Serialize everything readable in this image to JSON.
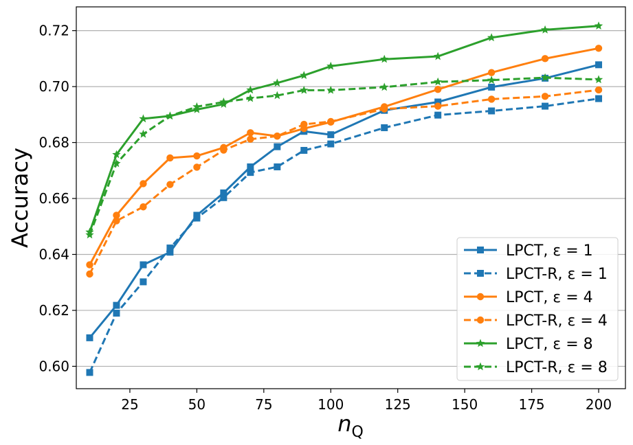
{
  "chart_data": {
    "type": "line",
    "title": "",
    "xlabel": "n",
    "xlabel_sub": "Q",
    "ylabel": "Accuracy",
    "xlim": [
      5,
      210
    ],
    "ylim": [
      0.592,
      0.7285
    ],
    "xticks": [
      25,
      50,
      75,
      100,
      125,
      150,
      175,
      200
    ],
    "yticks": [
      0.6,
      0.62,
      0.64,
      0.66,
      0.68,
      0.7,
      0.72
    ],
    "ytick_labels": [
      "0.60",
      "0.62",
      "0.64",
      "0.66",
      "0.68",
      "0.70",
      "0.72"
    ],
    "grid": "y",
    "legend_position": "lower-right",
    "x": [
      10,
      20,
      30,
      40,
      50,
      60,
      70,
      80,
      90,
      100,
      120,
      140,
      160,
      180,
      200
    ],
    "series": [
      {
        "name": "LPCT, ε = 1",
        "color": "#1f77b4",
        "linestyle": "solid",
        "marker": "square",
        "values": [
          0.6102,
          0.6218,
          0.6363,
          0.6408,
          0.654,
          0.662,
          0.6713,
          0.6785,
          0.684,
          0.6828,
          0.6915,
          0.6945,
          0.6998,
          0.703,
          0.7078
        ]
      },
      {
        "name": "LPCT-R, ε = 1",
        "color": "#1f77b4",
        "linestyle": "dashed",
        "marker": "square",
        "values": [
          0.5978,
          0.619,
          0.6302,
          0.6423,
          0.653,
          0.6603,
          0.6693,
          0.6713,
          0.6772,
          0.6795,
          0.6853,
          0.6898,
          0.6913,
          0.693,
          0.6957
        ]
      },
      {
        "name": "LPCT, ε = 4",
        "color": "#ff7f0e",
        "linestyle": "solid",
        "marker": "circle",
        "values": [
          0.6363,
          0.654,
          0.6653,
          0.6745,
          0.6752,
          0.6782,
          0.6835,
          0.6823,
          0.685,
          0.6873,
          0.6928,
          0.699,
          0.705,
          0.71,
          0.7137
        ]
      },
      {
        "name": "LPCT-R, ε = 4",
        "color": "#ff7f0e",
        "linestyle": "dashed",
        "marker": "circle",
        "values": [
          0.633,
          0.652,
          0.657,
          0.665,
          0.6712,
          0.6773,
          0.6812,
          0.6823,
          0.6865,
          0.6875,
          0.692,
          0.693,
          0.6955,
          0.6965,
          0.6988
        ]
      },
      {
        "name": "LPCT, ε = 8",
        "color": "#2ca02c",
        "linestyle": "solid",
        "marker": "star",
        "values": [
          0.648,
          0.6757,
          0.6885,
          0.6895,
          0.6918,
          0.6937,
          0.6988,
          0.7013,
          0.704,
          0.7073,
          0.7098,
          0.7108,
          0.7175,
          0.7203,
          0.7217
        ]
      },
      {
        "name": "LPCT-R, ε = 8",
        "color": "#2ca02c",
        "linestyle": "dashed",
        "marker": "star",
        "values": [
          0.647,
          0.6725,
          0.683,
          0.6895,
          0.6928,
          0.6945,
          0.6958,
          0.6968,
          0.6987,
          0.6987,
          0.6998,
          0.7017,
          0.7023,
          0.7032,
          0.7025
        ]
      }
    ]
  }
}
